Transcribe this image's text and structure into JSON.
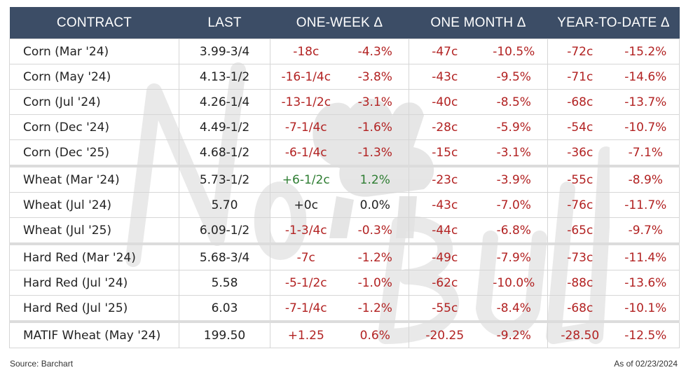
{
  "header": {
    "contract": "CONTRACT",
    "last": "LAST",
    "week": "ONE-WEEK Δ",
    "month": "ONE MONTH Δ",
    "ytd": "YEAR-TO-DATE Δ"
  },
  "rows": [
    {
      "contract": "Corn (Mar '24)",
      "last": "3.99-3/4",
      "wk_chg": "-18c",
      "wk_pct": "-4.3%",
      "mo_chg": "-47c",
      "mo_pct": "-10.5%",
      "ytd_chg": "-72c",
      "ytd_pct": "-15.2%"
    },
    {
      "contract": "Corn (May '24)",
      "last": "4.13-1/2",
      "wk_chg": "-16-1/4c",
      "wk_pct": "-3.8%",
      "mo_chg": "-43c",
      "mo_pct": "-9.5%",
      "ytd_chg": "-71c",
      "ytd_pct": "-14.6%"
    },
    {
      "contract": "Corn (Jul '24)",
      "last": "4.26-1/4",
      "wk_chg": "-13-1/2c",
      "wk_pct": "-3.1%",
      "mo_chg": "-40c",
      "mo_pct": "-8.5%",
      "ytd_chg": "-68c",
      "ytd_pct": "-13.7%"
    },
    {
      "contract": "Corn (Dec '24)",
      "last": "4.49-1/2",
      "wk_chg": "-7-1/4c",
      "wk_pct": "-1.6%",
      "mo_chg": "-28c",
      "mo_pct": "-5.9%",
      "ytd_chg": "-54c",
      "ytd_pct": "-10.7%"
    },
    {
      "contract": "Corn (Dec '25)",
      "last": "4.68-1/2",
      "wk_chg": "-6-1/4c",
      "wk_pct": "-1.3%",
      "mo_chg": "-15c",
      "mo_pct": "-3.1%",
      "ytd_chg": "-36c",
      "ytd_pct": "-7.1%"
    },
    {
      "contract": "Wheat (Mar '24)",
      "last": "5.73-1/2",
      "wk_chg": "+6-1/2c",
      "wk_pct": "1.2%",
      "mo_chg": "-23c",
      "mo_pct": "-3.9%",
      "ytd_chg": "-55c",
      "ytd_pct": "-8.9%"
    },
    {
      "contract": "Wheat (Jul '24)",
      "last": "5.70",
      "wk_chg": "+0c",
      "wk_pct": "0.0%",
      "mo_chg": "-43c",
      "mo_pct": "-7.0%",
      "ytd_chg": "-76c",
      "ytd_pct": "-11.7%"
    },
    {
      "contract": "Wheat (Jul '25)",
      "last": "6.09-1/2",
      "wk_chg": "-1-3/4c",
      "wk_pct": "-0.3%",
      "mo_chg": "-44c",
      "mo_pct": "-6.8%",
      "ytd_chg": "-65c",
      "ytd_pct": "-9.7%"
    },
    {
      "contract": "Hard Red (Mar '24)",
      "last": "5.68-3/4",
      "wk_chg": "-7c",
      "wk_pct": "-1.2%",
      "mo_chg": "-49c",
      "mo_pct": "-7.9%",
      "ytd_chg": "-73c",
      "ytd_pct": "-11.4%"
    },
    {
      "contract": "Hard Red (Jul '24)",
      "last": "5.58",
      "wk_chg": "-5-1/2c",
      "wk_pct": "-1.0%",
      "mo_chg": "-62c",
      "mo_pct": "-10.0%",
      "ytd_chg": "-88c",
      "ytd_pct": "-13.6%"
    },
    {
      "contract": "Hard Red (Jul '25)",
      "last": "6.03",
      "wk_chg": "-7-1/4c",
      "wk_pct": "-1.2%",
      "mo_chg": "-55c",
      "mo_pct": "-8.4%",
      "ytd_chg": "-68c",
      "ytd_pct": "-10.1%"
    },
    {
      "contract": "MATIF Wheat (May '24)",
      "last": "199.50",
      "wk_chg": "+1.25",
      "wk_pct": "0.6%",
      "mo_chg": "-20.25",
      "mo_pct": "-9.2%",
      "ytd_chg": "-28.50",
      "ytd_pct": "-12.5%"
    }
  ],
  "footer": {
    "source": "Source: Barchart",
    "asof": "As of 02/23/2024"
  },
  "watermark": {
    "icon": "bull-logo-icon",
    "text": "No Bull"
  },
  "colors": {
    "header_bg": "#3c4d66",
    "negative": "#b22222",
    "positive": "#2e7d32",
    "watermark": "#e6e6e6"
  }
}
